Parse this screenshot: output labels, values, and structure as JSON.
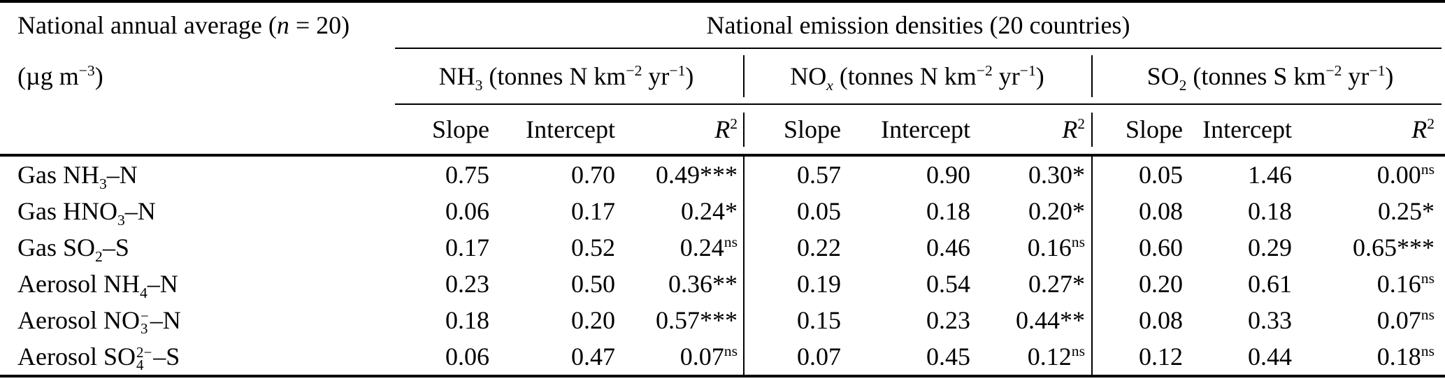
{
  "paper_table": {
    "corner": {
      "line1": "National annual average (<i>n</i> = 20)",
      "line2": "(µg m<sup>−3</sup>)"
    },
    "spanner": "National emission densities (20 countries)",
    "groups": [
      {
        "label": "NH<sub>3</sub> (tonnes N km<sup>−2</sup> yr<sup>−1</sup>)"
      },
      {
        "label": "NO<sub><i>x</i></sub> (tonnes N km<sup>−2</sup> yr<sup>−1</sup>)"
      },
      {
        "label": "SO<sub>2</sub> (tonnes S km<sup>−2</sup> yr<sup>−1</sup>)"
      }
    ],
    "stat_headers": [
      "Slope",
      "Intercept",
      "<i>R</i><sup>2</sup>"
    ],
    "rows": [
      {
        "label": "Gas NH<sub>3</sub>–N",
        "cells": [
          "0.75",
          "0.70",
          "0.49***",
          "0.57",
          "0.90",
          "0.30*",
          "0.05",
          "1.46",
          "0.00<sup>ns</sup>"
        ]
      },
      {
        "label": "Gas HNO<sub>3</sub>–N",
        "cells": [
          "0.06",
          "0.17",
          "0.24*",
          "0.05",
          "0.18",
          "0.20*",
          "0.08",
          "0.18",
          "0.25*"
        ]
      },
      {
        "label": "Gas SO<sub>2</sub>–S",
        "cells": [
          "0.17",
          "0.52",
          "0.24<sup>ns</sup>",
          "0.22",
          "0.46",
          "0.16<sup>ns</sup>",
          "0.60",
          "0.29",
          "0.65***"
        ]
      },
      {
        "label": "Aerosol NH<sub>4</sub>–N",
        "cells": [
          "0.23",
          "0.50",
          "0.36**",
          "0.19",
          "0.54",
          "0.27*",
          "0.20",
          "0.61",
          "0.16<sup>ns</sup>"
        ]
      },
      {
        "label": "Aerosol NO<span class=\"stk\"><sup>−</sup><sub>3</sub></span>–N",
        "cells": [
          "0.18",
          "0.20",
          "0.57***",
          "0.15",
          "0.23",
          "0.44**",
          "0.08",
          "0.33",
          "0.07<sup>ns</sup>"
        ]
      },
      {
        "label": "Aerosol SO<span class=\"stk\"><sup>2−</sup><sub>4</sub></span>–S",
        "cells": [
          "0.06",
          "0.47",
          "0.07<sup>ns</sup>",
          "0.07",
          "0.45",
          "0.12<sup>ns</sup>",
          "0.12",
          "0.44",
          "0.18<sup>ns</sup>"
        ]
      }
    ]
  }
}
